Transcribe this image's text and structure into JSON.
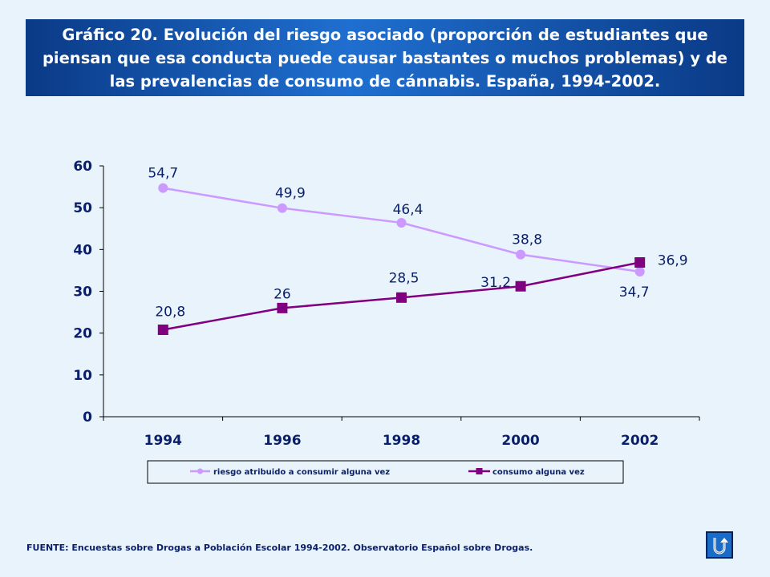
{
  "title": "Gráfico 20. Evolución del riesgo asociado (proporción de estudiantes que piensan que esa conducta puede causar bastantes o muchos problemas) y de las prevalencias de consumo de cánnabis. España, 1994-2002.",
  "colors": {
    "riesgo": "#cc99ff",
    "consumo": "#800080",
    "text": "#0a1f6b",
    "title_bg": "#0a3a86"
  },
  "chart_data": {
    "type": "line",
    "title": "Gráfico 20. Evolución del riesgo asociado (proporción de estudiantes que piensan que esa conducta puede causar bastantes o muchos problemas) y de las prevalencias de consumo de cánnabis. España, 1994-2002.",
    "categories": [
      "1994",
      "1996",
      "1998",
      "2000",
      "2002"
    ],
    "ylim": [
      0,
      60
    ],
    "yticks": [
      "0",
      "10",
      "20",
      "30",
      "40",
      "50",
      "60"
    ],
    "grid": false,
    "legend_position": "bottom",
    "series": [
      {
        "name": "riesgo atribuido a consumir alguna vez",
        "values": [
          54.7,
          49.9,
          46.4,
          38.8,
          34.7
        ],
        "labels": [
          "54,7",
          "49,9",
          "46,4",
          "38,8",
          "34,7"
        ],
        "marker": "circle"
      },
      {
        "name": "consumo alguna vez",
        "values": [
          20.8,
          26,
          28.5,
          31.2,
          36.9
        ],
        "labels": [
          "20,8",
          "26",
          "28,5",
          "31,2",
          "36,9"
        ],
        "marker": "square"
      }
    ]
  },
  "source": "FUENTE: Encuestas sobre Drogas a Población Escolar 1994-2002.  Observatorio Español sobre Drogas.",
  "return_icon": "return-arrow-icon"
}
